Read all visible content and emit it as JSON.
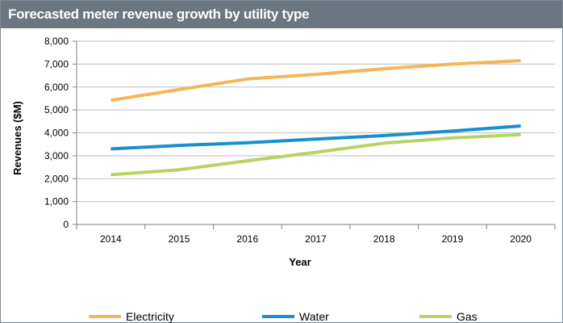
{
  "chart_data": {
    "type": "line",
    "title": "Forecasted meter revenue growth by utility type",
    "xlabel": "Year",
    "ylabel": "Revenues ($M)",
    "categories": [
      "2014",
      "2015",
      "2016",
      "2017",
      "2018",
      "2019",
      "2020"
    ],
    "y_ticks": [
      "0",
      "1,000",
      "2,000",
      "3,000",
      "4,000",
      "5,000",
      "6,000",
      "7,000",
      "8,000"
    ],
    "ylim": [
      0,
      8000
    ],
    "grid": true,
    "legend_position": "bottom",
    "series": [
      {
        "name": "Electricity",
        "color": "#f7b55a",
        "values": [
          5420,
          5890,
          6350,
          6550,
          6800,
          7000,
          7150
        ]
      },
      {
        "name": "Water",
        "color": "#1a8fce",
        "values": [
          3300,
          3450,
          3570,
          3730,
          3880,
          4080,
          4300
        ]
      },
      {
        "name": "Gas",
        "color": "#b7d265",
        "values": [
          2170,
          2390,
          2780,
          3150,
          3550,
          3780,
          3920
        ]
      }
    ]
  }
}
